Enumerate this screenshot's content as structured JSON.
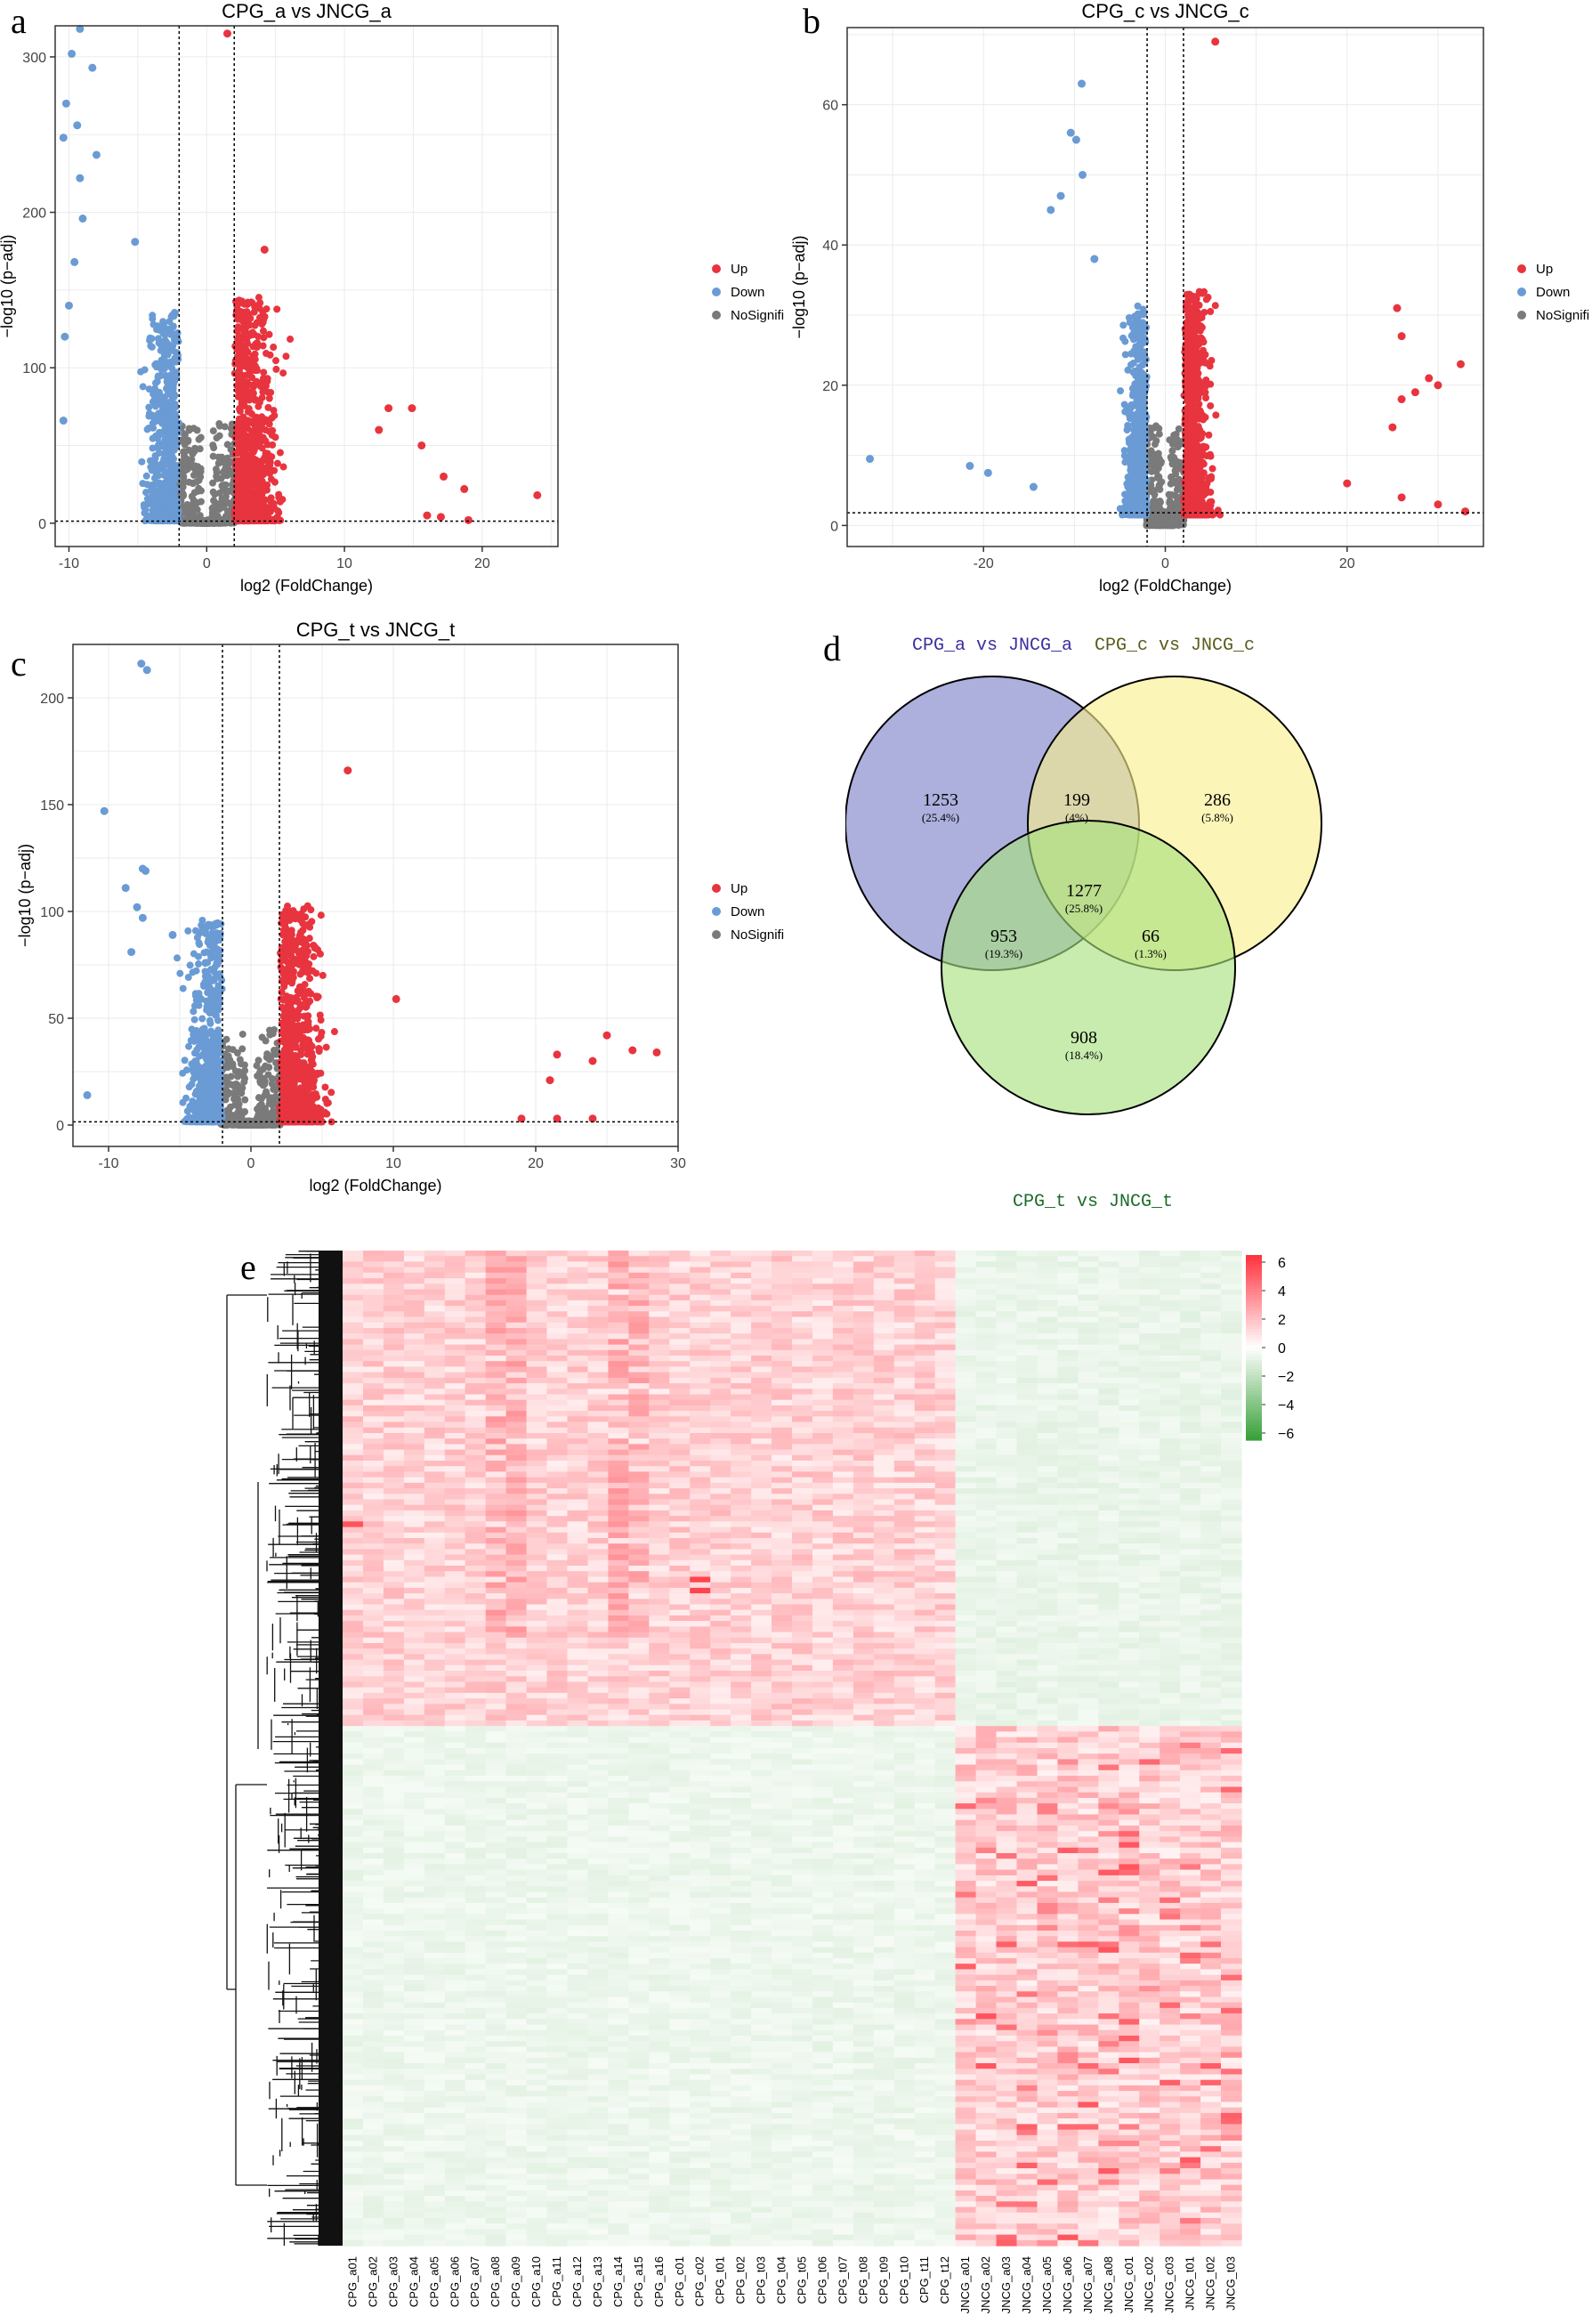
{
  "panel_letters": {
    "a": "a",
    "b": "b",
    "c": "c",
    "d": "d",
    "e": "e"
  },
  "colors": {
    "up": "#e8343f",
    "down": "#6a9bd4",
    "nosig": "#7a7a7a",
    "venn_a": "#7b7fc8",
    "venn_c": "#f8ef8a",
    "venn_t": "#a7e07c",
    "heat_high": "#e8343f",
    "heat_low": "#3aa13a"
  },
  "chart_data": [
    {
      "id": "volcano_a",
      "type": "scatter",
      "title": "CPG_a vs JNCG_a",
      "xlabel": "log2 (FoldChange)",
      "ylabel": "−log10 (p−adj)",
      "xlim": [
        -11,
        25.5
      ],
      "ylim": [
        -15,
        320
      ],
      "xticks": [
        "-10",
        "0",
        "10",
        "20"
      ],
      "xtick_values": [
        -10,
        0,
        10,
        20
      ],
      "yticks": [
        "0",
        "100",
        "200",
        "300"
      ],
      "ytick_values": [
        0,
        100,
        200,
        300
      ],
      "vlines": [
        -2,
        2
      ],
      "hline": 1.3,
      "legend": [
        "Up",
        "Down",
        "NoSignifi"
      ],
      "up_max_points": [
        [
          1.5,
          315
        ],
        [
          4.2,
          176
        ],
        [
          13.2,
          74
        ],
        [
          14.9,
          74
        ],
        [
          12.5,
          60
        ],
        [
          15.6,
          50
        ],
        [
          17.2,
          30
        ],
        [
          18.7,
          22
        ],
        [
          24,
          18
        ],
        [
          16,
          5
        ],
        [
          17,
          4
        ],
        [
          19,
          2
        ]
      ],
      "down_outliers": [
        [
          -9.2,
          318
        ],
        [
          -9.8,
          302
        ],
        [
          -8.3,
          293
        ],
        [
          -10.2,
          270
        ],
        [
          -9.4,
          256
        ],
        [
          -8.0,
          237
        ],
        [
          -10.4,
          248
        ],
        [
          -9.2,
          222
        ],
        [
          -9.0,
          196
        ],
        [
          -5.2,
          181
        ],
        [
          -10,
          140
        ],
        [
          -9.6,
          168
        ],
        [
          -10.3,
          120
        ],
        [
          -10.4,
          66
        ]
      ]
    },
    {
      "id": "volcano_c",
      "type": "scatter",
      "title": "CPG_c vs JNCG_c",
      "xlabel": "log2 (FoldChange)",
      "ylabel": "−log10 (p−adj)",
      "xlim": [
        -35,
        35
      ],
      "ylim": [
        -3,
        71
      ],
      "xticks": [
        "-20",
        "0",
        "20"
      ],
      "xtick_values": [
        -20,
        0,
        20
      ],
      "yticks": [
        "0",
        "20",
        "40",
        "60"
      ],
      "ytick_values": [
        0,
        20,
        40,
        60
      ],
      "vlines": [
        -2,
        2
      ],
      "hline": 1.8,
      "legend": [
        "Up",
        "Down",
        "NoSignifi"
      ],
      "up_max_points": [
        [
          5.5,
          69
        ],
        [
          25.5,
          31
        ],
        [
          26,
          27
        ],
        [
          32.5,
          23
        ],
        [
          26,
          18
        ],
        [
          27.5,
          19
        ],
        [
          29,
          21
        ],
        [
          30,
          20
        ],
        [
          25,
          14
        ],
        [
          20,
          6
        ],
        [
          26,
          4
        ],
        [
          30,
          3
        ],
        [
          33,
          2
        ]
      ],
      "down_outliers": [
        [
          -9.2,
          63
        ],
        [
          -10.4,
          56
        ],
        [
          -9.8,
          55
        ],
        [
          -9.1,
          50
        ],
        [
          -11.5,
          47
        ],
        [
          -12.6,
          45
        ],
        [
          -7.8,
          38
        ],
        [
          -32.5,
          9.5
        ],
        [
          -21.5,
          8.5
        ],
        [
          -19.5,
          7.5
        ],
        [
          -14.5,
          5.5
        ]
      ]
    },
    {
      "id": "volcano_t",
      "type": "scatter",
      "title": "CPG_t vs JNCG_t",
      "xlabel": "log2 (FoldChange)",
      "ylabel": "−log10 (p−adj)",
      "xlim": [
        -12.5,
        30
      ],
      "ylim": [
        -10,
        225
      ],
      "xticks": [
        "-10",
        "0",
        "10",
        "20",
        "30"
      ],
      "xtick_values": [
        -10,
        0,
        10,
        20,
        30
      ],
      "yticks": [
        "0",
        "50",
        "100",
        "150",
        "200"
      ],
      "ytick_values": [
        0,
        50,
        100,
        150,
        200
      ],
      "vlines": [
        -2,
        2
      ],
      "hline": 1.5,
      "legend": [
        "Up",
        "Down",
        "NoSignifi"
      ],
      "up_max_points": [
        [
          6.8,
          166
        ],
        [
          4.5,
          83
        ],
        [
          10.2,
          59
        ],
        [
          21.5,
          33
        ],
        [
          21,
          21
        ],
        [
          25,
          42
        ],
        [
          26.8,
          35
        ],
        [
          28.5,
          34
        ],
        [
          24,
          30
        ],
        [
          19,
          3
        ],
        [
          21.5,
          3
        ],
        [
          24,
          3
        ]
      ],
      "down_outliers": [
        [
          -7.7,
          216
        ],
        [
          -7.3,
          213
        ],
        [
          -10.3,
          147
        ],
        [
          -7.6,
          120
        ],
        [
          -7.4,
          119
        ],
        [
          -8.8,
          111
        ],
        [
          -8.0,
          102
        ],
        [
          -7.6,
          97
        ],
        [
          -5.5,
          89
        ],
        [
          -8.4,
          81
        ],
        [
          -11.5,
          14
        ]
      ]
    },
    {
      "id": "venn",
      "type": "venn",
      "sets": [
        "CPG_a vs JNCG_a",
        "CPG_c vs JNCG_c",
        "CPG_t vs JNCG_t"
      ],
      "regions": [
        {
          "sets": [
            "a"
          ],
          "count": "1253",
          "percent": "(25.4%)"
        },
        {
          "sets": [
            "a",
            "c"
          ],
          "count": "199",
          "percent": "(4%)"
        },
        {
          "sets": [
            "c"
          ],
          "count": "286",
          "percent": "(5.8%)"
        },
        {
          "sets": [
            "a",
            "c",
            "t"
          ],
          "count": "1277",
          "percent": "(25.8%)"
        },
        {
          "sets": [
            "a",
            "t"
          ],
          "count": "953",
          "percent": "(19.3%)"
        },
        {
          "sets": [
            "c",
            "t"
          ],
          "count": "66",
          "percent": "(1.3%)"
        },
        {
          "sets": [
            "t"
          ],
          "count": "908",
          "percent": "(18.4%)"
        }
      ]
    },
    {
      "id": "heatmap",
      "type": "heatmap",
      "columns": [
        "CPG_a01",
        "CPG_a02",
        "CPG_a03",
        "CPG_a04",
        "CPG_a05",
        "CPG_a06",
        "CPG_a07",
        "CPG_a08",
        "CPG_a09",
        "CPG_a10",
        "CPG_a11",
        "CPG_a12",
        "CPG_a13",
        "CPG_a14",
        "CPG_a15",
        "CPG_a16",
        "CPG_c01",
        "CPG_c02",
        "CPG_t01",
        "CPG_t02",
        "CPG_t03",
        "CPG_t04",
        "CPG_t05",
        "CPG_t06",
        "CPG_t07",
        "CPG_t08",
        "CPG_t09",
        "CPG_t10",
        "CPG_t11",
        "CPG_t12",
        "JNCG_a01",
        "JNCG_a02",
        "JNCG_a03",
        "JNCG_a04",
        "JNCG_a05",
        "JNCG_a06",
        "JNCG_a07",
        "JNCG_a08",
        "JNCG_c01",
        "JNCG_c02",
        "JNCG_c03",
        "JNCG_t01",
        "JNCG_t02",
        "JNCG_t03"
      ],
      "colorbar_ticks": [
        "6",
        "4",
        "2",
        "0",
        "−2",
        "−4",
        "−6"
      ],
      "colorbar_values": [
        6,
        4,
        2,
        0,
        -2,
        -4,
        -6
      ],
      "value_range": [
        -6.5,
        6.5
      ]
    }
  ]
}
